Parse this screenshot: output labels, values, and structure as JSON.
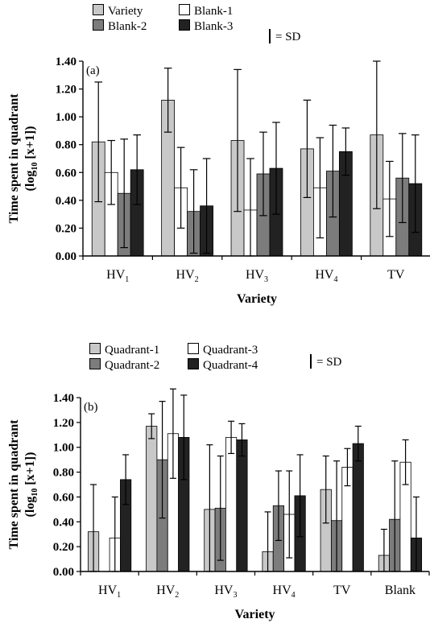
{
  "chart_data": [
    {
      "type": "bar",
      "panel_label": "(a)",
      "ylabel_line1": "Time spent in quadrant",
      "ylabel_line2_prefix": "(log",
      "ylabel_line2_sub": "10",
      "ylabel_line2_suffix": " [x+1])",
      "xlabel": "Variety",
      "ylim": [
        0,
        1.4
      ],
      "yticks": [
        "0.00",
        "0.20",
        "0.40",
        "0.60",
        "0.80",
        "1.00",
        "1.20",
        "1.40"
      ],
      "categories": [
        {
          "main": "HV",
          "sub": "1"
        },
        {
          "main": "HV",
          "sub": "2"
        },
        {
          "main": "HV",
          "sub": "3"
        },
        {
          "main": "HV",
          "sub": "4"
        },
        {
          "main": "TV",
          "sub": ""
        }
      ],
      "sd_note": "= SD",
      "series": [
        {
          "name": "Variety",
          "color": "#c8c8c8",
          "values": [
            0.82,
            1.12,
            0.83,
            0.77,
            0.87
          ],
          "sd": [
            0.43,
            0.23,
            0.51,
            0.35,
            0.53
          ]
        },
        {
          "name": "Blank-1",
          "color": "#ffffff",
          "values": [
            0.6,
            0.49,
            0.33,
            0.49,
            0.41
          ],
          "sd": [
            0.23,
            0.29,
            0.37,
            0.36,
            0.27
          ]
        },
        {
          "name": "Blank-2",
          "color": "#7c7c7c",
          "values": [
            0.45,
            0.32,
            0.59,
            0.61,
            0.56
          ],
          "sd": [
            0.39,
            0.3,
            0.3,
            0.33,
            0.32
          ]
        },
        {
          "name": "Blank-3",
          "color": "#222222",
          "values": [
            0.62,
            0.36,
            0.63,
            0.75,
            0.52
          ],
          "sd": [
            0.25,
            0.34,
            0.33,
            0.17,
            0.35
          ]
        }
      ],
      "legend_order": [
        0,
        1,
        2,
        3
      ]
    },
    {
      "type": "bar",
      "panel_label": "(b)",
      "ylabel_line1": "Time spent in quadrant",
      "ylabel_line2_prefix": "(log",
      "ylabel_line2_sub": "10",
      "ylabel_line2_suffix": " [x+1])",
      "xlabel": "Variety",
      "ylim": [
        0,
        1.4
      ],
      "yticks": [
        "0.00",
        "0.20",
        "0.40",
        "0.60",
        "0.80",
        "1.00",
        "1.20",
        "1.40"
      ],
      "categories": [
        {
          "main": "HV",
          "sub": "1"
        },
        {
          "main": "HV",
          "sub": "2"
        },
        {
          "main": "HV",
          "sub": "3"
        },
        {
          "main": "HV",
          "sub": "4"
        },
        {
          "main": "TV",
          "sub": ""
        },
        {
          "main": "Blank",
          "sub": ""
        }
      ],
      "sd_note": "= SD",
      "series": [
        {
          "name": "Quadrant-1",
          "color": "#c8c8c8",
          "values": [
            0.32,
            1.17,
            0.5,
            0.16,
            0.66,
            0.13
          ],
          "sd": [
            0.38,
            0.1,
            0.52,
            0.32,
            0.27,
            0.21
          ]
        },
        {
          "name": "Quadrant-2",
          "color": "#7c7c7c",
          "values": [
            0.0,
            0.9,
            0.51,
            0.53,
            0.41,
            0.42
          ],
          "sd": [
            0.0,
            0.47,
            0.42,
            0.28,
            0.48,
            0.47
          ]
        },
        {
          "name": "Quadrant-3",
          "color": "#ffffff",
          "values": [
            0.27,
            1.11,
            1.08,
            0.46,
            0.84,
            0.88
          ],
          "sd": [
            0.33,
            0.36,
            0.13,
            0.35,
            0.15,
            0.18
          ]
        },
        {
          "name": "Quadrant-4",
          "color": "#222222",
          "values": [
            0.74,
            1.08,
            1.06,
            0.61,
            1.03,
            0.27
          ],
          "sd": [
            0.2,
            0.34,
            0.13,
            0.33,
            0.14,
            0.33
          ]
        }
      ],
      "legend_order": [
        0,
        2,
        1,
        3
      ]
    }
  ]
}
